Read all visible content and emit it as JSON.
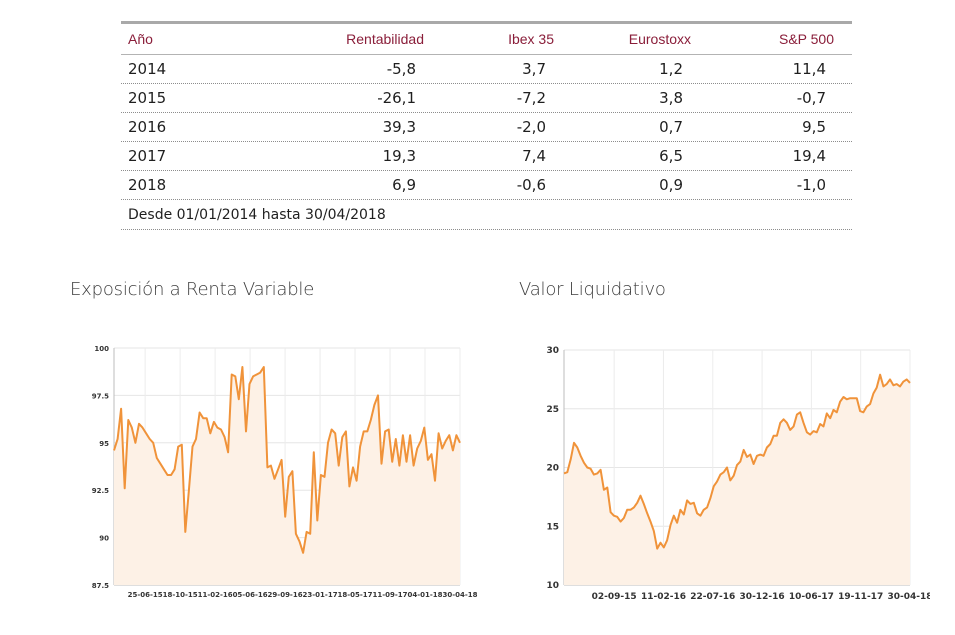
{
  "table": {
    "headers": [
      "Año",
      "Rentabilidad",
      "Ibex 35",
      "Eurostoxx",
      "S&P 500"
    ],
    "rows": [
      {
        "year": "2014",
        "rentabilidad": "-5,8",
        "ibex": "3,7",
        "eurostoxx": "1,2",
        "sp500": "11,4"
      },
      {
        "year": "2015",
        "rentabilidad": "-26,1",
        "ibex": "-7,2",
        "eurostoxx": "3,8",
        "sp500": "-0,7"
      },
      {
        "year": "2016",
        "rentabilidad": "39,3",
        "ibex": "-2,0",
        "eurostoxx": "0,7",
        "sp500": "9,5"
      },
      {
        "year": "2017",
        "rentabilidad": "19,3",
        "ibex": "7,4",
        "eurostoxx": "6,5",
        "sp500": "19,4"
      },
      {
        "year": "2018",
        "rentabilidad": "6,9",
        "ibex": "-0,6",
        "eurostoxx": "0,9",
        "sp500": "-1,0"
      }
    ],
    "note": "Desde 01/01/2014 hasta 30/04/2018"
  },
  "colors": {
    "line": "#f0933a",
    "fill": "#fdf1e6",
    "header_text": "#8a1e3a"
  },
  "chart_data": [
    {
      "type": "line",
      "title": "Exposición a Renta Variable",
      "xlabel": "",
      "ylabel": "",
      "ylim": [
        87.5,
        100
      ],
      "yticks": [
        100,
        97.5,
        95,
        92.5,
        90,
        87.5
      ],
      "ytick_labels": [
        "100",
        "97.5",
        "95",
        "92.5",
        "90",
        "87.5"
      ],
      "xtick_labels": [
        "25-06-15",
        "18-10-15",
        "11-02-16",
        "05-06-16",
        "29-09-16",
        "23-01-17",
        "18-05-17",
        "11-09-17",
        "04-01-18",
        "30-04-18"
      ],
      "grid": true,
      "series": [
        {
          "name": "Exposición",
          "values": [
            94.6,
            95.2,
            96.8,
            92.6,
            96.2,
            95.8,
            95.0,
            96.0,
            95.8,
            95.5,
            95.2,
            95.0,
            94.2,
            93.9,
            93.6,
            93.3,
            93.3,
            93.6,
            94.8,
            94.9,
            90.3,
            92.5,
            94.8,
            95.2,
            96.6,
            96.3,
            96.3,
            95.5,
            96.1,
            95.8,
            95.7,
            95.3,
            94.5,
            98.6,
            98.5,
            97.3,
            99.0,
            95.6,
            98.1,
            98.5,
            98.6,
            98.7,
            99.0,
            93.7,
            93.8,
            93.1,
            93.6,
            94.1,
            91.1,
            93.2,
            93.5,
            90.2,
            89.8,
            89.2,
            90.3,
            90.2,
            94.5,
            90.9,
            93.3,
            93.2,
            95.0,
            95.7,
            95.5,
            93.8,
            95.3,
            95.6,
            92.7,
            93.7,
            93.0,
            94.8,
            95.6,
            95.6,
            96.2,
            97.0,
            97.5,
            93.9,
            95.6,
            95.7,
            94.0,
            95.2,
            93.8,
            95.4,
            94.0,
            95.4,
            93.8,
            94.7,
            95.1,
            95.8,
            94.1,
            94.4,
            93.0,
            95.5,
            94.7,
            95.1,
            95.4,
            94.6,
            95.4,
            95.0
          ]
        }
      ]
    },
    {
      "type": "line",
      "title": "Valor Liquidativo",
      "xlabel": "",
      "ylabel": "",
      "ylim": [
        10,
        30
      ],
      "yticks": [
        30,
        25,
        20,
        15,
        10
      ],
      "ytick_labels": [
        "30",
        "25",
        "20",
        "15",
        "10"
      ],
      "xtick_labels": [
        "02-09-15",
        "11-02-16",
        "22-07-16",
        "30-12-16",
        "10-06-17",
        "19-11-17",
        "30-04-18"
      ],
      "grid": true,
      "series": [
        {
          "name": "Valor liquidativo",
          "values": [
            19.5,
            19.6,
            20.7,
            22.1,
            21.7,
            21.0,
            20.4,
            20.0,
            19.9,
            19.4,
            19.5,
            19.8,
            18.1,
            18.3,
            16.2,
            15.9,
            15.8,
            15.4,
            15.7,
            16.4,
            16.4,
            16.6,
            17.0,
            17.6,
            16.9,
            16.1,
            15.4,
            14.6,
            13.1,
            13.6,
            13.2,
            13.8,
            15.1,
            15.9,
            15.3,
            16.4,
            16.0,
            17.2,
            16.9,
            17.0,
            16.1,
            15.9,
            16.4,
            16.6,
            17.4,
            18.4,
            18.8,
            19.4,
            19.6,
            20.0,
            18.9,
            19.3,
            20.2,
            20.5,
            21.5,
            20.9,
            21.1,
            20.3,
            21.0,
            21.1,
            21.0,
            21.7,
            22.0,
            22.7,
            22.7,
            23.8,
            24.1,
            23.8,
            23.2,
            23.5,
            24.5,
            24.7,
            23.8,
            23.0,
            22.8,
            23.1,
            23.0,
            23.7,
            23.5,
            24.6,
            24.2,
            24.9,
            24.7,
            25.6,
            26.0,
            25.8,
            25.9,
            25.9,
            25.9,
            24.8,
            24.7,
            25.2,
            25.4,
            26.3,
            26.8,
            27.9,
            26.9,
            27.1,
            27.5,
            27.0,
            27.1,
            26.9,
            27.3,
            27.5,
            27.2
          ]
        }
      ]
    }
  ]
}
